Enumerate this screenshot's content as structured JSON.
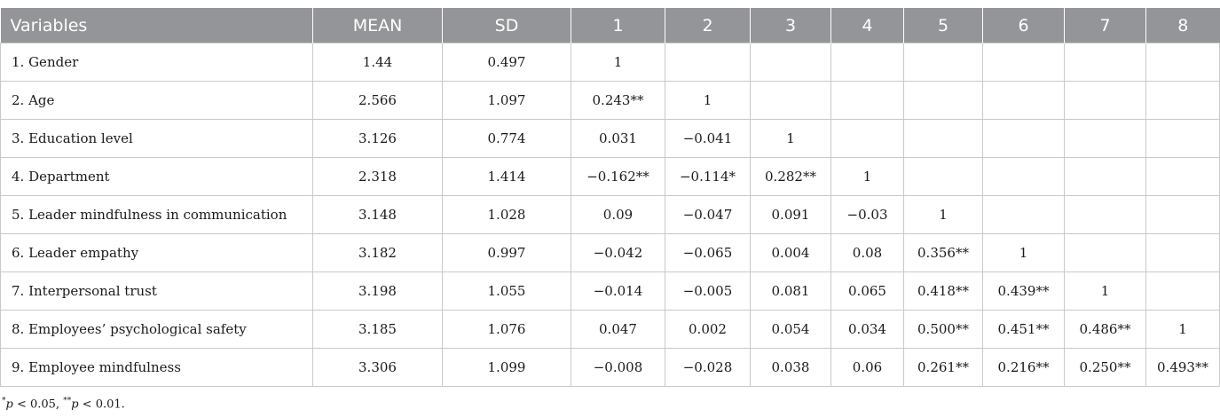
{
  "table": {
    "headers": [
      "Variables",
      "MEAN",
      "SD",
      "1",
      "2",
      "3",
      "4",
      "5",
      "6",
      "7",
      "8"
    ],
    "rows": [
      [
        "1. Gender",
        "1.44",
        "0.497",
        "1",
        "",
        "",
        "",
        "",
        "",
        "",
        ""
      ],
      [
        "2. Age",
        "2.566",
        "1.097",
        "0.243**",
        "1",
        "",
        "",
        "",
        "",
        "",
        ""
      ],
      [
        "3. Education level",
        "3.126",
        "0.774",
        "0.031",
        "−0.041",
        "1",
        "",
        "",
        "",
        "",
        ""
      ],
      [
        "4. Department",
        "2.318",
        "1.414",
        "−0.162**",
        "−0.114*",
        "0.282**",
        "1",
        "",
        "",
        "",
        ""
      ],
      [
        "5. Leader mindfulness in communication",
        "3.148",
        "1.028",
        "0.09",
        "−0.047",
        "0.091",
        "−0.03",
        "1",
        "",
        "",
        ""
      ],
      [
        "6. Leader empathy",
        "3.182",
        "0.997",
        "−0.042",
        "−0.065",
        "0.004",
        "0.08",
        "0.356**",
        "1",
        "",
        ""
      ],
      [
        "7. Interpersonal trust",
        "3.198",
        "1.055",
        "−0.014",
        "−0.005",
        "0.081",
        "0.065",
        "0.418**",
        "0.439**",
        "1",
        ""
      ],
      [
        "8. Employees’ psychological safety",
        "3.185",
        "1.076",
        "0.047",
        "0.002",
        "0.054",
        "0.034",
        "0.500**",
        "0.451**",
        "0.486**",
        "1"
      ],
      [
        "9. Employee mindfulness",
        "3.306",
        "1.099",
        "−0.008",
        "−0.028",
        "0.038",
        "0.06",
        "0.261**",
        "0.216**",
        "0.250**",
        "0.493**"
      ]
    ]
  },
  "footnote": {
    "star1": "*",
    "p1": "p",
    "text1": " < 0.05, ",
    "star2": "**",
    "p2": "p",
    "text2": " < 0.01."
  }
}
